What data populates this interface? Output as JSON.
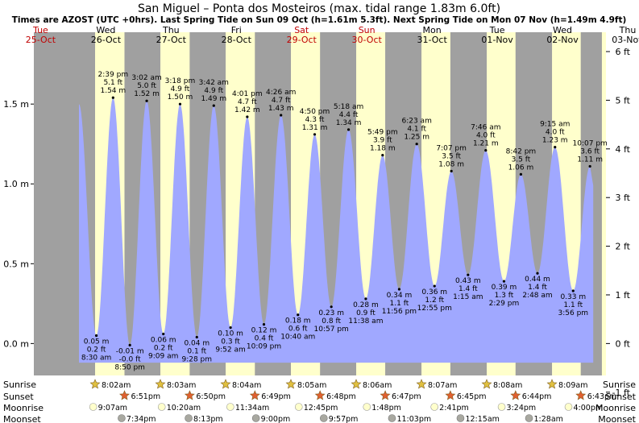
{
  "title": "San Miguel – Ponta dos Mosteiros (max. tidal range 1.83m 6.0ft)",
  "subtitle": "Times are AZOST (UTC +0hrs). Last Spring Tide on Sun 09 Oct (h=1.61m 5.3ft). Next Spring Tide on Mon 07 Nov (h=1.49m 4.9ft)",
  "colors": {
    "tide_fill": "#a0a8ff",
    "day_bg": "#ffffcc",
    "night_bg": "#a0a0a0",
    "weekend_label": "#c00000",
    "sun_star": "#e0c040",
    "sunset_star": "#e06030",
    "moonrise": "#ffffcc",
    "moonset": "#a8a8a0"
  },
  "chart_data": {
    "type": "area",
    "x_unit": "hours from 00:00 Tue 25-Oct",
    "x_range": [
      9.5,
      220
    ],
    "ylim_m": [
      -0.2,
      1.95
    ],
    "y_ticks_m": [
      "0.0 m",
      "0.5 m",
      "1.0 m",
      "1.5 m"
    ],
    "y_ticks_ft": [
      "-1 ft",
      "0 ft",
      "1 ft",
      "2 ft",
      "3 ft",
      "4 ft",
      "5 ft",
      "6 ft"
    ],
    "days": [
      {
        "dow": "Tue",
        "date": "25-Oct",
        "weekend": true
      },
      {
        "dow": "Wed",
        "date": "26-Oct",
        "weekend": false
      },
      {
        "dow": "Thu",
        "date": "27-Oct",
        "weekend": false
      },
      {
        "dow": "Fri",
        "date": "28-Oct",
        "weekend": false
      },
      {
        "dow": "Sat",
        "date": "29-Oct",
        "weekend": true
      },
      {
        "dow": "Sun",
        "date": "30-Oct",
        "weekend": true
      },
      {
        "dow": "Mon",
        "date": "31-Oct",
        "weekend": false
      },
      {
        "dow": "Tue",
        "date": "01-Nov",
        "weekend": false
      },
      {
        "dow": "Wed",
        "date": "02-Nov",
        "weekend": false
      },
      {
        "dow": "Thu",
        "date": "03-Nov",
        "weekend": false
      }
    ],
    "tides": [
      {
        "t": 26.1,
        "h": 1.5,
        "type": "high",
        "time": "",
        "ft": "",
        "m": ""
      },
      {
        "t": 32.5,
        "h": 0.05,
        "type": "low",
        "time": "8:30 am",
        "ft": "0.2 ft",
        "m": "0.05 m"
      },
      {
        "t": 38.65,
        "h": 1.54,
        "type": "high",
        "time": "2:39 pm",
        "ft": "5.1 ft",
        "m": "1.54 m"
      },
      {
        "t": 44.83,
        "h": -0.01,
        "type": "low",
        "time": "8:50 pm",
        "ft": "-0.0 ft",
        "m": "-0.01 m"
      },
      {
        "t": 51.03,
        "h": 1.52,
        "type": "high",
        "time": "3:02 am",
        "ft": "5.0 ft",
        "m": "1.52 m"
      },
      {
        "t": 57.15,
        "h": 0.06,
        "type": "low",
        "time": "9:09 am",
        "ft": "0.2 ft",
        "m": "0.06 m"
      },
      {
        "t": 63.3,
        "h": 1.5,
        "type": "high",
        "time": "3:18 pm",
        "ft": "4.9 ft",
        "m": "1.50 m"
      },
      {
        "t": 69.47,
        "h": 0.04,
        "type": "low",
        "time": "9:28 pm",
        "ft": "0.1 ft",
        "m": "0.04 m"
      },
      {
        "t": 75.7,
        "h": 1.49,
        "type": "high",
        "time": "3:42 am",
        "ft": "4.9 ft",
        "m": "1.49 m"
      },
      {
        "t": 81.87,
        "h": 0.1,
        "type": "low",
        "time": "9:52 am",
        "ft": "0.3 ft",
        "m": "0.10 m"
      },
      {
        "t": 88.02,
        "h": 1.42,
        "type": "high",
        "time": "4:01 pm",
        "ft": "4.7 ft",
        "m": "1.42 m"
      },
      {
        "t": 94.15,
        "h": 0.12,
        "type": "low",
        "time": "10:09 pm",
        "ft": "0.4 ft",
        "m": "0.12 m"
      },
      {
        "t": 100.43,
        "h": 1.43,
        "type": "high",
        "time": "4:26 am",
        "ft": "4.7 ft",
        "m": "1.43 m"
      },
      {
        "t": 106.67,
        "h": 0.18,
        "type": "low",
        "time": "10:40 am",
        "ft": "0.6 ft",
        "m": "0.18 m"
      },
      {
        "t": 112.83,
        "h": 1.31,
        "type": "high",
        "time": "4:50 pm",
        "ft": "4.3 ft",
        "m": "1.31 m"
      },
      {
        "t": 118.95,
        "h": 0.23,
        "type": "low",
        "time": "10:57 pm",
        "ft": "0.8 ft",
        "m": "0.23 m"
      },
      {
        "t": 125.3,
        "h": 1.34,
        "type": "high",
        "time": "5:18 am",
        "ft": "4.4 ft",
        "m": "1.34 m"
      },
      {
        "t": 131.63,
        "h": 0.28,
        "type": "low",
        "time": "11:38 am",
        "ft": "0.9 ft",
        "m": "0.28 m"
      },
      {
        "t": 137.82,
        "h": 1.18,
        "type": "high",
        "time": "5:49 pm",
        "ft": "3.9 ft",
        "m": "1.18 m"
      },
      {
        "t": 143.93,
        "h": 0.34,
        "type": "low",
        "time": "11:56 pm",
        "ft": "1.1 ft",
        "m": "0.34 m"
      },
      {
        "t": 150.38,
        "h": 1.25,
        "type": "high",
        "time": "6:23 am",
        "ft": "4.1 ft",
        "m": "1.25 m"
      },
      {
        "t": 156.92,
        "h": 0.36,
        "type": "low",
        "time": "12:55 pm",
        "ft": "1.2 ft",
        "m": "0.36 m"
      },
      {
        "t": 163.12,
        "h": 1.08,
        "type": "high",
        "time": "7:07 pm",
        "ft": "3.5 ft",
        "m": "1.08 m"
      },
      {
        "t": 169.25,
        "h": 0.43,
        "type": "low",
        "time": "1:15 am",
        "ft": "1.4 ft",
        "m": "0.43 m"
      },
      {
        "t": 175.77,
        "h": 1.21,
        "type": "high",
        "time": "7:46 am",
        "ft": "4.0 ft",
        "m": "1.21 m"
      },
      {
        "t": 182.48,
        "h": 0.39,
        "type": "low",
        "time": "2:29 pm",
        "ft": "1.3 ft",
        "m": "0.39 m"
      },
      {
        "t": 188.7,
        "h": 1.06,
        "type": "high",
        "time": "8:42 pm",
        "ft": "3.5 ft",
        "m": "1.06 m"
      },
      {
        "t": 194.8,
        "h": 0.44,
        "type": "low",
        "time": "2:48 am",
        "ft": "1.4 ft",
        "m": "0.44 m"
      },
      {
        "t": 201.25,
        "h": 1.23,
        "type": "high",
        "time": "9:15 am",
        "ft": "4.0 ft",
        "m": "1.23 m"
      },
      {
        "t": 207.93,
        "h": 0.33,
        "type": "low",
        "time": "3:56 pm",
        "ft": "1.1 ft",
        "m": "0.33 m"
      },
      {
        "t": 214.12,
        "h": 1.11,
        "type": "high",
        "time": "10:07 pm",
        "ft": "3.6 ft",
        "m": "1.11 m"
      }
    ],
    "daylight": [
      {
        "rise": 32.03,
        "set": 42.85
      },
      {
        "rise": 56.05,
        "set": 66.83
      },
      {
        "rise": 80.07,
        "set": 90.82
      },
      {
        "rise": 104.08,
        "set": 114.8
      },
      {
        "rise": 128.1,
        "set": 138.78
      },
      {
        "rise": 152.12,
        "set": 162.75
      },
      {
        "rise": 176.13,
        "set": 186.73
      },
      {
        "rise": 200.15,
        "set": 210.72
      }
    ],
    "trailing_day_start": 218.5
  },
  "astro": {
    "row_labels": {
      "sunrise": "Sunrise",
      "sunset": "Sunset",
      "moonrise": "Moonrise",
      "moonset": "Moonset"
    },
    "sunrise": [
      {
        "t": 32.03,
        "time": "8:02am"
      },
      {
        "t": 56.05,
        "time": "8:03am"
      },
      {
        "t": 80.07,
        "time": "8:04am"
      },
      {
        "t": 104.08,
        "time": "8:05am"
      },
      {
        "t": 128.1,
        "time": "8:06am"
      },
      {
        "t": 152.12,
        "time": "8:07am"
      },
      {
        "t": 176.13,
        "time": "8:08am"
      },
      {
        "t": 200.15,
        "time": "8:09am"
      }
    ],
    "sunset": [
      {
        "t": 42.85,
        "time": "6:51pm"
      },
      {
        "t": 66.83,
        "time": "6:50pm"
      },
      {
        "t": 90.82,
        "time": "6:49pm"
      },
      {
        "t": 114.8,
        "time": "6:48pm"
      },
      {
        "t": 138.78,
        "time": "6:47pm"
      },
      {
        "t": 162.75,
        "time": "6:45pm"
      },
      {
        "t": 186.73,
        "time": "6:44pm"
      },
      {
        "t": 210.72,
        "time": "6:43pm"
      }
    ],
    "moonrise": [
      {
        "t": 33.12,
        "time": "9:07am"
      },
      {
        "t": 58.33,
        "time": "10:20am"
      },
      {
        "t": 83.57,
        "time": "11:34am"
      },
      {
        "t": 108.75,
        "time": "12:45pm"
      },
      {
        "t": 133.8,
        "time": "1:48pm"
      },
      {
        "t": 158.68,
        "time": "2:41pm"
      },
      {
        "t": 183.4,
        "time": "3:24pm"
      },
      {
        "t": 208.0,
        "time": "4:00pm"
      }
    ],
    "moonset": [
      {
        "t": 43.57,
        "time": "7:34pm"
      },
      {
        "t": 68.22,
        "time": "8:13pm"
      },
      {
        "t": 93.0,
        "time": "9:00pm"
      },
      {
        "t": 117.95,
        "time": "9:57pm"
      },
      {
        "t": 143.05,
        "time": "11:03pm"
      },
      {
        "t": 168.25,
        "time": "12:15am"
      },
      {
        "t": 193.47,
        "time": "1:28am"
      }
    ]
  }
}
